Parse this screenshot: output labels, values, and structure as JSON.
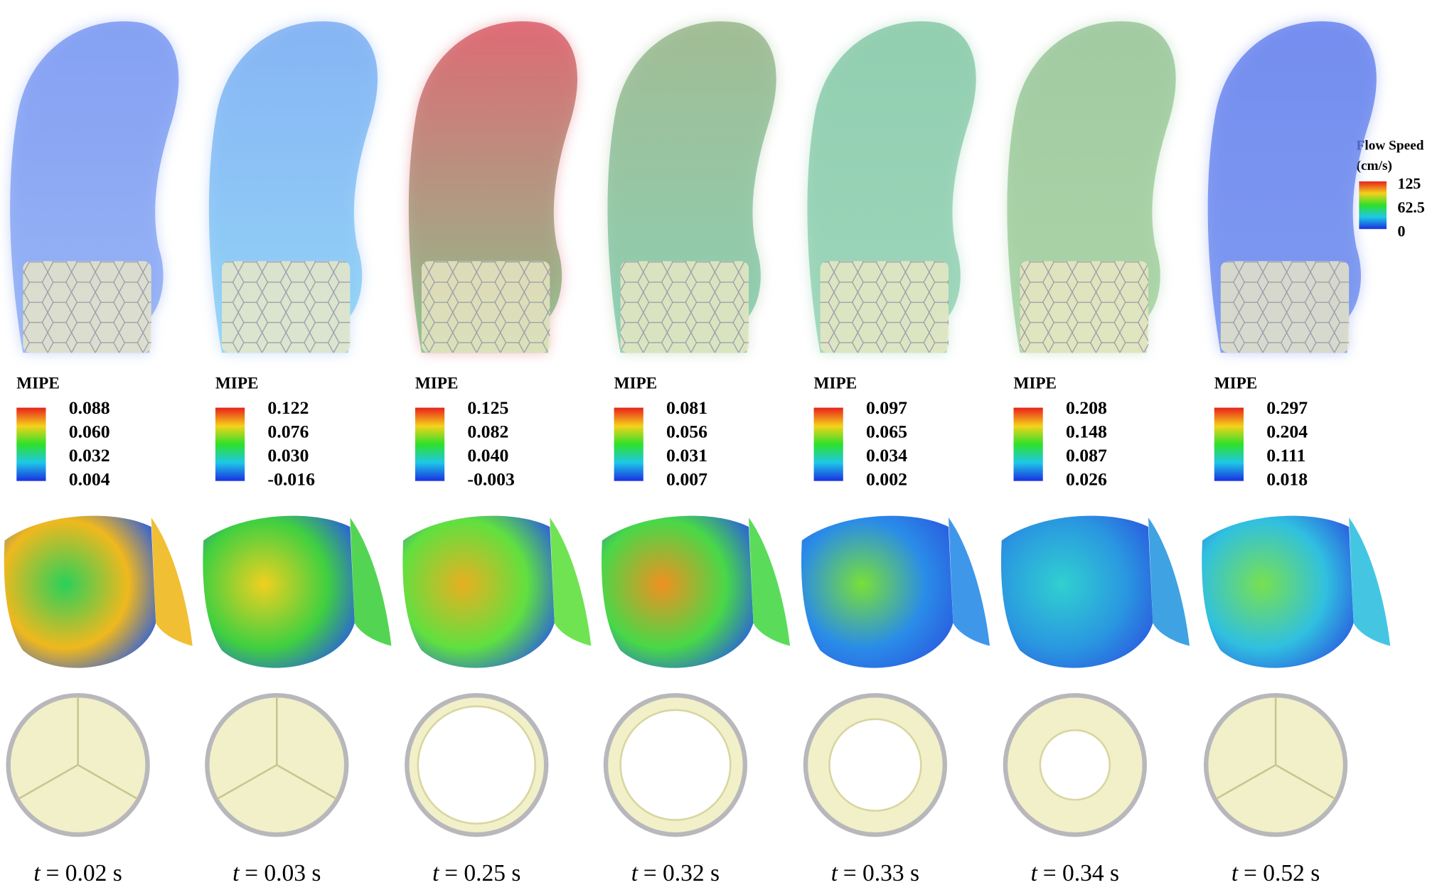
{
  "legend": {
    "title": "Flow Speed",
    "unit": "(cm/s)",
    "ticks": [
      "125",
      "62.5",
      "0"
    ]
  },
  "columns": [
    {
      "label": "MIPE",
      "ticks": [
        "0.088",
        "0.060",
        "0.032",
        "0.004"
      ],
      "time": {
        "symbol": "t",
        "text": "= 0.02 s"
      }
    },
    {
      "label": "MIPE",
      "ticks": [
        "0.122",
        "0.076",
        "0.030",
        "-0.016"
      ],
      "time": {
        "symbol": "t",
        "text": "= 0.03 s"
      }
    },
    {
      "label": "MIPE",
      "ticks": [
        "0.125",
        "0.082",
        "0.040",
        "-0.003"
      ],
      "time": {
        "symbol": "t",
        "text": "= 0.25 s"
      }
    },
    {
      "label": "MIPE",
      "ticks": [
        "0.081",
        "0.056",
        "0.031",
        "0.007"
      ],
      "time": {
        "symbol": "t",
        "text": "= 0.32 s"
      }
    },
    {
      "label": "MIPE",
      "ticks": [
        "0.097",
        "0.065",
        "0.034",
        "0.002"
      ],
      "time": {
        "symbol": "t",
        "text": "= 0.33 s"
      }
    },
    {
      "label": "MIPE",
      "ticks": [
        "0.208",
        "0.148",
        "0.087",
        "0.026"
      ],
      "time": {
        "symbol": "t",
        "text": "= 0.34 s"
      }
    },
    {
      "label": "MIPE",
      "ticks": [
        "0.297",
        "0.204",
        "0.111",
        "0.018"
      ],
      "time": {
        "symbol": "t",
        "text": "= 0.52 s"
      }
    }
  ]
}
